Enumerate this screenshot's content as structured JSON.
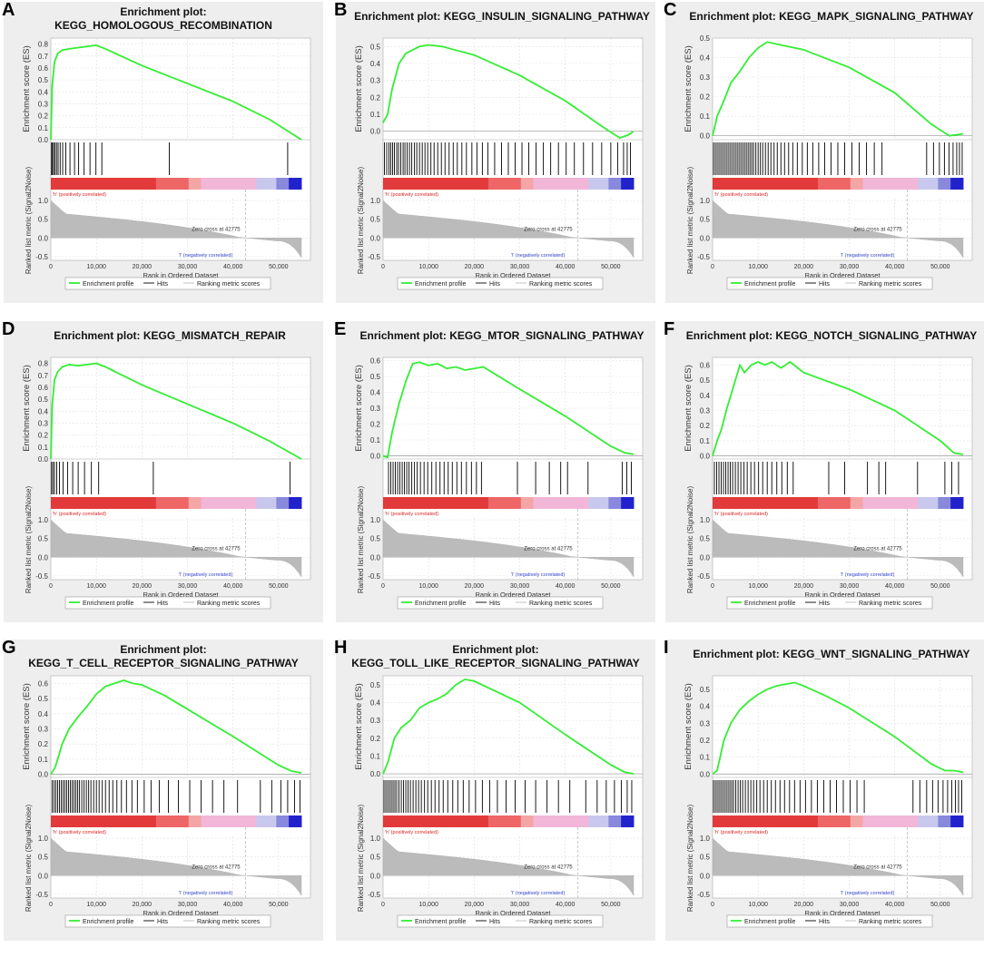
{
  "figure": {
    "common": {
      "es_ylabel": "Enrichment score (ES)",
      "rank_ylabel": "Ranked list metric (Signal2Noise)",
      "xlabel": "Rank in Ordered Dataset",
      "pos_label": "'h' (positively correlated)",
      "neg_label": "'l' (negatively correlated)",
      "zero_cross_label": "Zero cross at 42775",
      "x_ticks": [
        "0",
        "10,000",
        "20,000",
        "30,000",
        "40,000",
        "50,000"
      ],
      "rank_ticks": [
        "1.0",
        "0.5",
        "0.0",
        "-0.5"
      ],
      "legend": [
        "Enrichment profile",
        "Hits",
        "Ranking metric scores"
      ]
    }
  },
  "chart_data": [
    {
      "type": "line",
      "panel_letter": "A",
      "title_lines": [
        "Enrichment plot:",
        "KEGG_HOMOLOGOUS_RECOMBINATION"
      ],
      "xlabel": "Rank in Ordered Dataset",
      "ylabel": "Enrichment score (ES)",
      "x_range": [
        0,
        55000
      ],
      "ylim": [
        0,
        0.85
      ],
      "y_ticks": [
        "0.0",
        "0.1",
        "0.2",
        "0.3",
        "0.4",
        "0.5",
        "0.6",
        "0.7",
        "0.8"
      ],
      "y_tick_values": [
        0,
        0.1,
        0.2,
        0.3,
        0.4,
        0.5,
        0.6,
        0.7,
        0.8
      ],
      "series": [
        {
          "name": "Enrichment profile",
          "color": "#33ee33",
          "x": [
            0,
            300,
            800,
            1500,
            2500,
            4000,
            6000,
            8000,
            10000,
            12000,
            20000,
            30000,
            40000,
            48000,
            55000
          ],
          "y": [
            0,
            0.45,
            0.65,
            0.72,
            0.75,
            0.76,
            0.77,
            0.78,
            0.79,
            0.76,
            0.62,
            0.47,
            0.32,
            0.17,
            0.0
          ]
        }
      ],
      "hits": [
        150,
        350,
        600,
        900,
        1250,
        1600,
        2050,
        2600,
        3300,
        4200,
        5200,
        6100,
        7300,
        8600,
        9900,
        11200,
        26000,
        52000
      ]
    },
    {
      "type": "line",
      "panel_letter": "B",
      "title_lines": [
        "Enrichment plot: KEGG_INSULIN_SIGNALING_PATHWAY"
      ],
      "xlabel": "Rank in Ordered Dataset",
      "ylabel": "Enrichment score (ES)",
      "x_range": [
        0,
        55000
      ],
      "ylim": [
        -0.05,
        0.55
      ],
      "y_ticks": [
        "0.0",
        "0.1",
        "0.2",
        "0.3",
        "0.4",
        "0.5"
      ],
      "y_tick_values": [
        0,
        0.1,
        0.2,
        0.3,
        0.4,
        0.5
      ],
      "series": [
        {
          "name": "Enrichment profile",
          "color": "#33ee33",
          "x": [
            0,
            1000,
            2000,
            3500,
            5000,
            8000,
            10000,
            13000,
            20000,
            30000,
            40000,
            48000,
            52000,
            54000,
            55000
          ],
          "y": [
            0.05,
            0.1,
            0.25,
            0.4,
            0.46,
            0.5,
            0.51,
            0.5,
            0.45,
            0.33,
            0.18,
            0.03,
            -0.04,
            -0.02,
            0.0
          ]
        }
      ],
      "hits": [
        300,
        800,
        1300,
        1700,
        2100,
        2500,
        3000,
        3400,
        3900,
        4400,
        4800,
        5300,
        5800,
        6300,
        6900,
        7400,
        8000,
        8600,
        9200,
        9800,
        10500,
        11200,
        12000,
        12800,
        13600,
        14500,
        15400,
        16300,
        17300,
        18300,
        19500,
        20600,
        21800,
        23000,
        24500,
        26000,
        27500,
        29000,
        30500,
        32000,
        33600,
        35200,
        36800,
        38500,
        40200,
        42000,
        44000,
        46000,
        48000,
        50000,
        51500,
        52800,
        53600,
        54300
      ]
    },
    {
      "type": "line",
      "panel_letter": "C",
      "title_lines": [
        "Enrichment plot: KEGG_MAPK_SIGNALING_PATHWAY"
      ],
      "xlabel": "Rank in Ordered Dataset",
      "ylabel": "Enrichment score (ES)",
      "x_range": [
        0,
        55000
      ],
      "ylim": [
        -0.02,
        0.5
      ],
      "y_ticks": [
        "0.0",
        "0.1",
        "0.2",
        "0.3",
        "0.4",
        "0.5"
      ],
      "y_tick_values": [
        0,
        0.1,
        0.2,
        0.3,
        0.4,
        0.5
      ],
      "series": [
        {
          "name": "Enrichment profile",
          "color": "#33ee33",
          "x": [
            0,
            1000,
            2500,
            4000,
            6000,
            8000,
            10000,
            12000,
            14000,
            20000,
            30000,
            40000,
            48000,
            52000,
            55000
          ],
          "y": [
            0.0,
            0.1,
            0.18,
            0.27,
            0.33,
            0.4,
            0.45,
            0.48,
            0.47,
            0.44,
            0.35,
            0.22,
            0.06,
            0.0,
            0.01
          ]
        }
      ],
      "hits": [
        200,
        600,
        1000,
        1400,
        1800,
        2200,
        2600,
        3000,
        3400,
        3800,
        4200,
        4600,
        5000,
        5400,
        5800,
        6200,
        6600,
        7000,
        7400,
        7800,
        8200,
        8600,
        9000,
        9500,
        10000,
        10500,
        11000,
        11600,
        12200,
        12800,
        13500,
        14200,
        15000,
        15800,
        16700,
        17600,
        18600,
        19700,
        20800,
        22000,
        23300,
        24600,
        26000,
        27500,
        29000,
        30600,
        32200,
        33800,
        35500,
        37200,
        47000,
        48500,
        49800,
        50900,
        51900,
        52800,
        53600,
        54200,
        54800
      ]
    },
    {
      "type": "line",
      "panel_letter": "D",
      "title_lines": [
        "Enrichment plot: KEGG_MISMATCH_REPAIR"
      ],
      "xlabel": "Rank in Ordered Dataset",
      "ylabel": "Enrichment score (ES)",
      "x_range": [
        0,
        55000
      ],
      "ylim": [
        0,
        0.85
      ],
      "y_ticks": [
        "0.0",
        "0.1",
        "0.2",
        "0.3",
        "0.4",
        "0.5",
        "0.6",
        "0.7",
        "0.8"
      ],
      "y_tick_values": [
        0,
        0.1,
        0.2,
        0.3,
        0.4,
        0.5,
        0.6,
        0.7,
        0.8
      ],
      "series": [
        {
          "name": "Enrichment profile",
          "color": "#33ee33",
          "x": [
            0,
            300,
            800,
            1500,
            2500,
            4000,
            6000,
            8000,
            10000,
            12000,
            20000,
            30000,
            40000,
            48000,
            55000
          ],
          "y": [
            0,
            0.45,
            0.66,
            0.73,
            0.77,
            0.79,
            0.78,
            0.79,
            0.8,
            0.77,
            0.62,
            0.46,
            0.3,
            0.15,
            0.0
          ]
        }
      ],
      "hits": [
        150,
        450,
        800,
        1300,
        1900,
        2700,
        3700,
        4800,
        6000,
        7400,
        8900,
        10500,
        22500,
        52500
      ]
    },
    {
      "type": "line",
      "panel_letter": "E",
      "title_lines": [
        "Enrichment plot: KEGG_MTOR_SIGNALING_PATHWAY"
      ],
      "xlabel": "Rank in Ordered Dataset",
      "ylabel": "Enrichment score (ES)",
      "x_range": [
        0,
        55000
      ],
      "ylim": [
        -0.02,
        0.62
      ],
      "y_ticks": [
        "0.0",
        "0.1",
        "0.2",
        "0.3",
        "0.4",
        "0.5",
        "0.6"
      ],
      "y_tick_values": [
        0,
        0.1,
        0.2,
        0.3,
        0.4,
        0.5,
        0.6
      ],
      "series": [
        {
          "name": "Enrichment profile",
          "color": "#33ee33",
          "x": [
            0,
            1000,
            2000,
            3500,
            5000,
            6500,
            8000,
            10000,
            12000,
            14000,
            16000,
            18000,
            20000,
            22000,
            30000,
            40000,
            50000,
            53000,
            55000
          ],
          "y": [
            0.0,
            -0.01,
            0.15,
            0.33,
            0.47,
            0.58,
            0.59,
            0.57,
            0.58,
            0.55,
            0.56,
            0.54,
            0.55,
            0.56,
            0.42,
            0.25,
            0.06,
            0.02,
            0.01
          ]
        }
      ],
      "hits": [
        1200,
        1700,
        2200,
        2700,
        3200,
        3700,
        4200,
        4700,
        5200,
        5700,
        6300,
        6900,
        7500,
        8200,
        9000,
        9800,
        10700,
        11600,
        12500,
        13400,
        14300,
        15200,
        16200,
        17200,
        18300,
        19400,
        20500,
        21600,
        29500,
        33500,
        36500,
        39000,
        40500,
        45000,
        52500,
        53500,
        54500
      ]
    },
    {
      "type": "line",
      "panel_letter": "F",
      "title_lines": [
        "Enrichment plot: KEGG_NOTCH_SIGNALING_PATHWAY"
      ],
      "xlabel": "Rank in Ordered Dataset",
      "ylabel": "Enrichment score (ES)",
      "x_range": [
        0,
        55000
      ],
      "ylim": [
        -0.02,
        0.65
      ],
      "y_ticks": [
        "0.0",
        "0.1",
        "0.2",
        "0.3",
        "0.4",
        "0.5",
        "0.6"
      ],
      "y_tick_values": [
        0,
        0.1,
        0.2,
        0.3,
        0.4,
        0.5,
        0.6
      ],
      "series": [
        {
          "name": "Enrichment profile",
          "color": "#33ee33",
          "x": [
            0,
            1000,
            2000,
            3000,
            4500,
            6000,
            7000,
            8500,
            10000,
            11500,
            13000,
            15000,
            17000,
            20000,
            30000,
            40000,
            50000,
            53000,
            55000
          ],
          "y": [
            0.0,
            0.1,
            0.18,
            0.3,
            0.45,
            0.6,
            0.55,
            0.6,
            0.62,
            0.6,
            0.62,
            0.58,
            0.62,
            0.55,
            0.44,
            0.3,
            0.1,
            0.02,
            0.01
          ]
        }
      ],
      "hits": [
        400,
        900,
        1400,
        1900,
        2400,
        2900,
        3400,
        3900,
        4400,
        5000,
        5600,
        6200,
        6900,
        7600,
        8400,
        9200,
        10100,
        11000,
        12000,
        13000,
        14100,
        15200,
        16400,
        17700,
        25500,
        29000,
        34000,
        36500,
        38000,
        45000,
        51000,
        52500,
        54000
      ]
    },
    {
      "type": "line",
      "panel_letter": "G",
      "title_lines": [
        "Enrichment plot:",
        "KEGG_T_CELL_RECEPTOR_SIGNALING_PATHWAY"
      ],
      "xlabel": "Rank in Ordered Dataset",
      "ylabel": "Enrichment score (ES)",
      "x_range": [
        0,
        55000
      ],
      "ylim": [
        -0.02,
        0.65
      ],
      "y_ticks": [
        "0.0",
        "0.1",
        "0.2",
        "0.3",
        "0.4",
        "0.5",
        "0.6"
      ],
      "y_tick_values": [
        0,
        0.1,
        0.2,
        0.3,
        0.4,
        0.5,
        0.6
      ],
      "series": [
        {
          "name": "Enrichment profile",
          "color": "#33ee33",
          "x": [
            0,
            1000,
            2500,
            4000,
            6000,
            8000,
            10000,
            12000,
            14000,
            16000,
            18000,
            20000,
            25000,
            30000,
            40000,
            50000,
            53000,
            55000
          ],
          "y": [
            0.0,
            0.05,
            0.2,
            0.3,
            0.38,
            0.45,
            0.53,
            0.58,
            0.6,
            0.62,
            0.6,
            0.59,
            0.52,
            0.43,
            0.25,
            0.06,
            0.02,
            0.01
          ]
        }
      ],
      "hits": [
        300,
        700,
        1100,
        1500,
        1900,
        2300,
        2700,
        3100,
        3500,
        3900,
        4300,
        4700,
        5100,
        5500,
        5900,
        6300,
        6800,
        7300,
        7800,
        8300,
        8800,
        9400,
        10000,
        10600,
        11300,
        12000,
        12800,
        13600,
        14500,
        15500,
        16600,
        17800,
        19000,
        20500,
        22000,
        23800,
        25800,
        28000,
        30500,
        33000,
        35500,
        38000,
        41000,
        46000,
        48500,
        50500,
        52000,
        53500,
        54700
      ]
    },
    {
      "type": "line",
      "panel_letter": "H",
      "title_lines": [
        "Enrichment plot:",
        "KEGG_TOLL_LIKE_RECEPTOR_SIGNALING_PATHWAY"
      ],
      "xlabel": "Rank in Ordered Dataset",
      "ylabel": "Enrichment score (ES)",
      "x_range": [
        0,
        55000
      ],
      "ylim": [
        -0.02,
        0.55
      ],
      "y_ticks": [
        "0.0",
        "0.1",
        "0.2",
        "0.3",
        "0.4",
        "0.5"
      ],
      "y_tick_values": [
        0,
        0.1,
        0.2,
        0.3,
        0.4,
        0.5
      ],
      "series": [
        {
          "name": "Enrichment profile",
          "color": "#33ee33",
          "x": [
            0,
            1000,
            2500,
            4000,
            6000,
            8000,
            10000,
            12000,
            14000,
            16000,
            18000,
            20000,
            25000,
            30000,
            40000,
            50000,
            53000,
            55000
          ],
          "y": [
            0.0,
            0.06,
            0.2,
            0.26,
            0.3,
            0.37,
            0.4,
            0.42,
            0.45,
            0.5,
            0.53,
            0.52,
            0.46,
            0.4,
            0.22,
            0.05,
            0.01,
            0.0
          ]
        }
      ],
      "hits": [
        200,
        600,
        1000,
        1400,
        1800,
        2200,
        2600,
        3000,
        3500,
        4000,
        4500,
        5000,
        5500,
        6000,
        6600,
        7200,
        7800,
        8400,
        9100,
        9800,
        10600,
        11400,
        12300,
        13200,
        14200,
        15300,
        16400,
        17600,
        18900,
        20300,
        21800,
        23400,
        25100,
        27000,
        29000,
        31200,
        33500,
        36000,
        38500,
        41000,
        44500,
        47000,
        49000,
        50800,
        52300,
        53600,
        54600
      ]
    },
    {
      "type": "line",
      "panel_letter": "I",
      "title_lines": [
        "Enrichment plot: KEGG_WNT_SIGNALING_PATHWAY"
      ],
      "xlabel": "Rank in Ordered Dataset",
      "ylabel": "Enrichment score (ES)",
      "x_range": [
        0,
        55000
      ],
      "ylim": [
        -0.02,
        0.58
      ],
      "y_ticks": [
        "0.0",
        "0.1",
        "0.2",
        "0.3",
        "0.4",
        "0.5"
      ],
      "y_tick_values": [
        0,
        0.1,
        0.2,
        0.3,
        0.4,
        0.5
      ],
      "series": [
        {
          "name": "Enrichment profile",
          "color": "#33ee33",
          "x": [
            0,
            1000,
            2500,
            4000,
            6000,
            8000,
            10000,
            12000,
            14000,
            16000,
            18000,
            20000,
            25000,
            30000,
            40000,
            48000,
            51000,
            53000,
            55000
          ],
          "y": [
            0.0,
            0.02,
            0.2,
            0.3,
            0.38,
            0.43,
            0.47,
            0.5,
            0.52,
            0.53,
            0.54,
            0.52,
            0.46,
            0.39,
            0.22,
            0.06,
            0.02,
            0.02,
            0.01
          ]
        }
      ],
      "hits": [
        200,
        600,
        1000,
        1400,
        1800,
        2200,
        2600,
        3000,
        3400,
        3800,
        4200,
        4600,
        5100,
        5600,
        6100,
        6600,
        7200,
        7800,
        8400,
        9000,
        9700,
        10400,
        11200,
        12000,
        12900,
        13800,
        14800,
        15800,
        16900,
        18000,
        19200,
        20400,
        21700,
        23000,
        24400,
        25800,
        27200,
        28700,
        30200,
        31700,
        33300,
        44000,
        45500,
        47000,
        48300,
        49500,
        50600,
        51600,
        52500,
        53300,
        54000,
        54700
      ]
    }
  ]
}
